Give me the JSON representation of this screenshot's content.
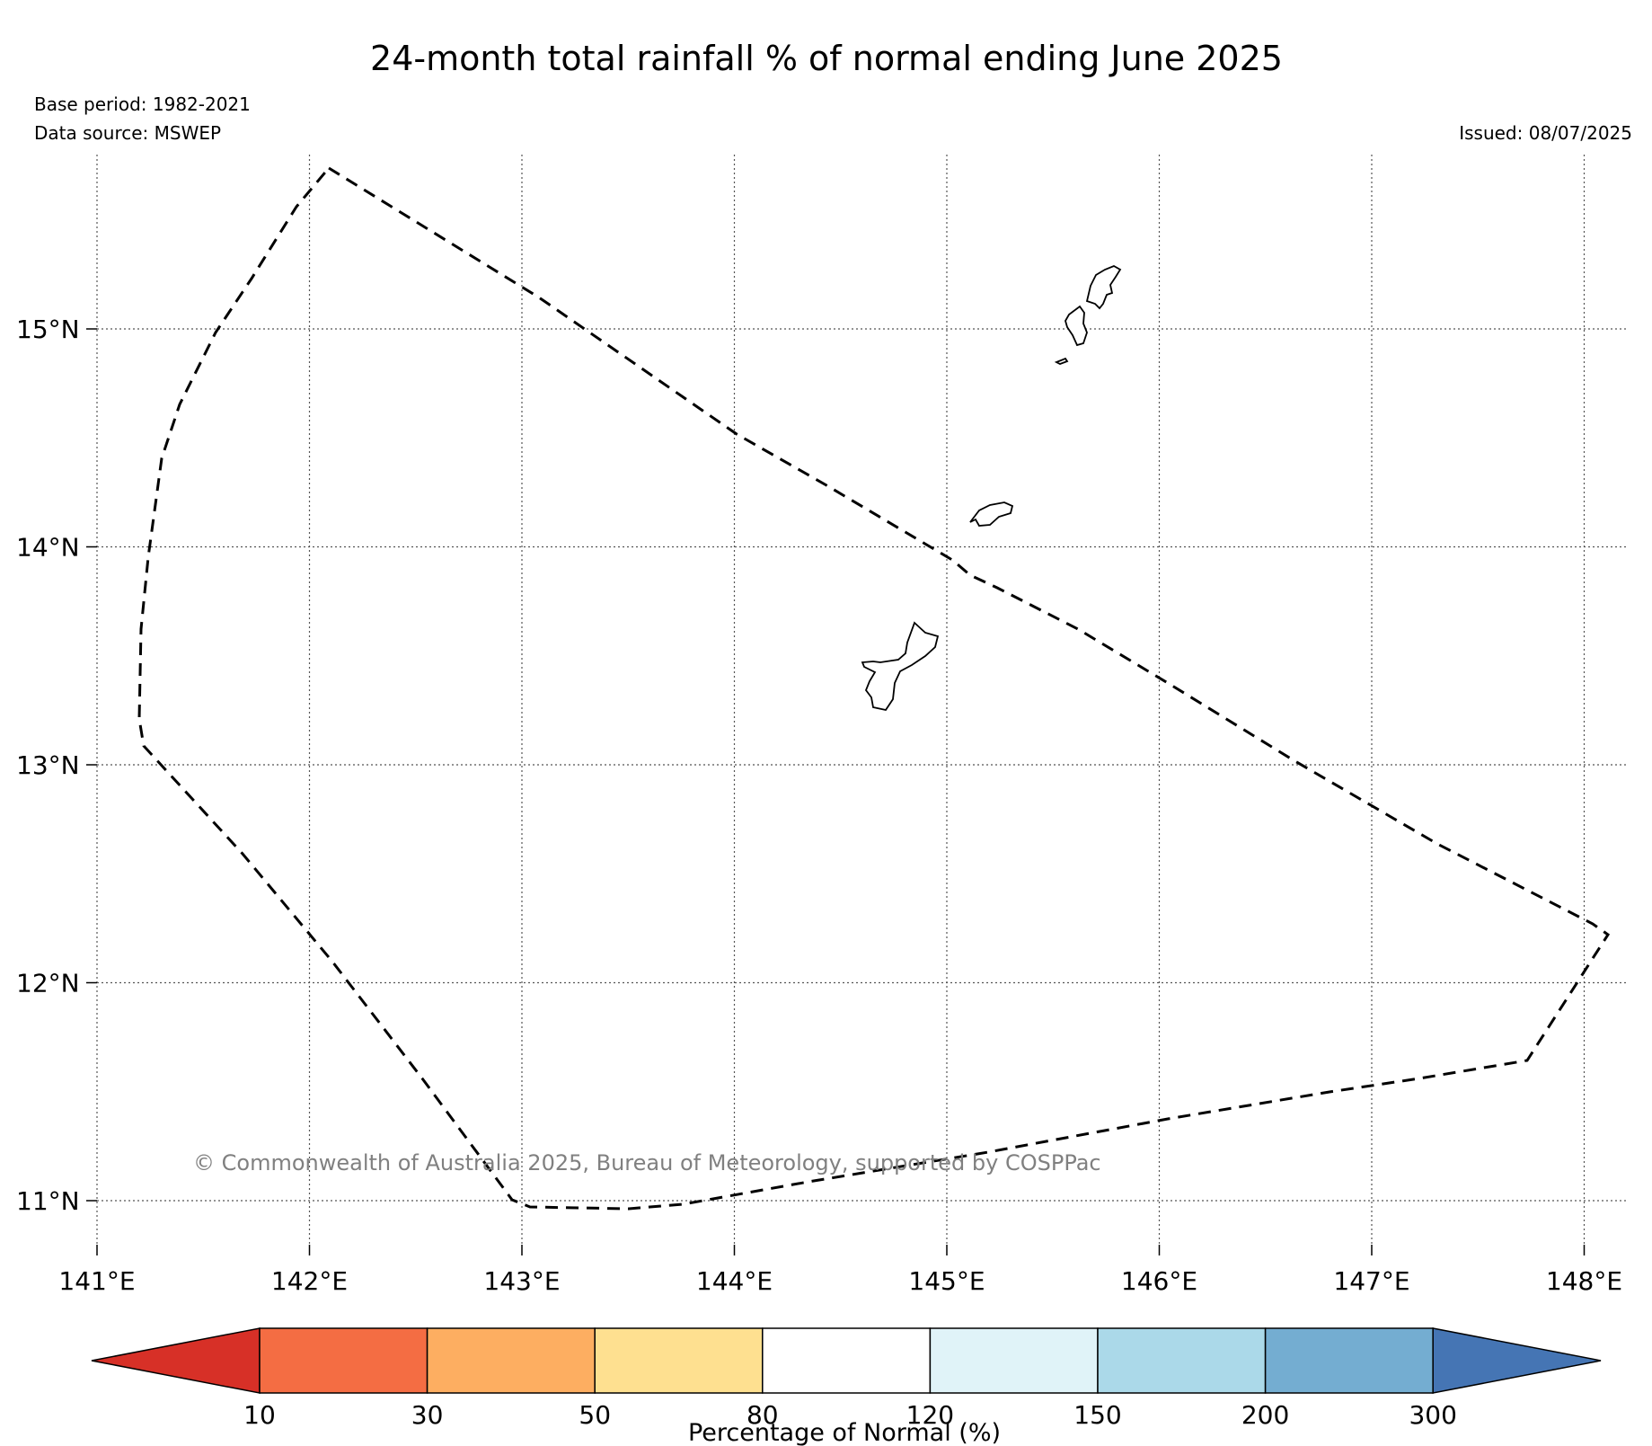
{
  "title": "24-month total rainfall % of normal ending June 2025",
  "base_period": "Base period: 1982-2021",
  "data_source": "Data source: MSWEP",
  "issued": "Issued: 08/07/2025",
  "copyright": "© Commonwealth of Australia 2025, Bureau of Meteorology, supported by COSPPac",
  "map": {
    "lon_range": [
      141,
      148
    ],
    "lat_range": [
      11,
      15
    ],
    "lon_labels": [
      "141°E",
      "142°E",
      "143°E",
      "144°E",
      "145°E",
      "146°E",
      "147°E",
      "148°E"
    ],
    "lat_labels": [
      "15°N",
      "14°N",
      "13°N",
      "12°N",
      "11°N"
    ],
    "grid": "dotted",
    "boundary_style": "dashed",
    "islands": [
      "island-northern",
      "island-middle",
      "island-guam"
    ]
  },
  "colorbar": {
    "label": "Percentage of Normal (%)",
    "ticks": [
      "10",
      "30",
      "50",
      "80",
      "120",
      "150",
      "200",
      "300"
    ],
    "colors": [
      "#d73027",
      "#f46d43",
      "#fdae61",
      "#fee090",
      "#ffffff",
      "#e0f3f8",
      "#abd9e9",
      "#74add1",
      "#4575b4"
    ]
  }
}
